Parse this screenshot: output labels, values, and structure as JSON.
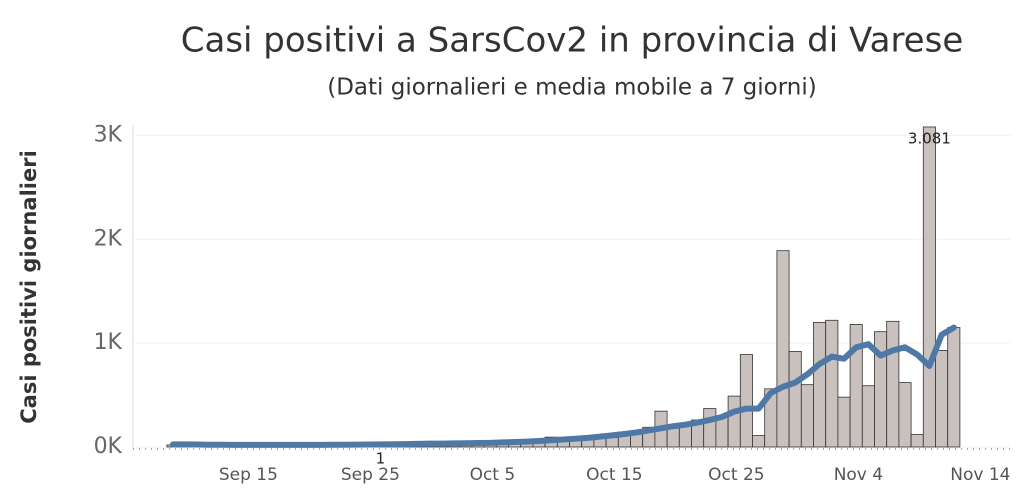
{
  "chart_data": {
    "type": "bar+line",
    "title": "Casi positivi  a SarsCov2 in provincia di Varese",
    "subtitle": "(Dati giornalieri e media mobile  a 7 giorni)",
    "y_label": "Casi positivi giornalieri",
    "categories": [
      "Sep 8",
      "Sep 9",
      "Sep 10",
      "Sep 11",
      "Sep 12",
      "Sep 13",
      "Sep 14",
      "Sep 15",
      "Sep 16",
      "Sep 17",
      "Sep 18",
      "Sep 19",
      "Sep 20",
      "Sep 21",
      "Sep 22",
      "Sep 23",
      "Sep 24",
      "Sep 25",
      "Sep 26",
      "Sep 27",
      "Sep 28",
      "Sep 29",
      "Sep 30",
      "Oct 1",
      "Oct 2",
      "Oct 3",
      "Oct 4",
      "Oct 5",
      "Oct 6",
      "Oct 7",
      "Oct 8",
      "Oct 9",
      "Oct 10",
      "Oct 11",
      "Oct 12",
      "Oct 13",
      "Oct 14",
      "Oct 15",
      "Oct 16",
      "Oct 17",
      "Oct 18",
      "Oct 19",
      "Oct 20",
      "Oct 21",
      "Oct 22",
      "Oct 23",
      "Oct 24",
      "Oct 25",
      "Oct 26",
      "Oct 27",
      "Oct 28",
      "Oct 29",
      "Oct 30",
      "Oct 31",
      "Nov 1",
      "Nov 2",
      "Nov 3",
      "Nov 4",
      "Nov 5",
      "Nov 6",
      "Nov 7",
      "Nov 8",
      "Nov 9",
      "Nov 10",
      "Nov 11",
      "Nov 12",
      "Nov 13",
      "Nov 14"
    ],
    "xticks": [
      "Sep 15",
      "Sep 25",
      "Oct 5",
      "Oct 15",
      "Oct 25",
      "Nov 4",
      "Nov 14"
    ],
    "series": [
      {
        "name": "Casi giornalieri",
        "kind": "bar",
        "color": "#c9c1be",
        "values": [
          20,
          30,
          25,
          15,
          40,
          10,
          35,
          30,
          25,
          20,
          15,
          30,
          10,
          35,
          25,
          20,
          30,
          1,
          25,
          35,
          30,
          20,
          40,
          35,
          30,
          25,
          45,
          50,
          40,
          35,
          60,
          95,
          60,
          70,
          100,
          100,
          90,
          145,
          130,
          190,
          345,
          210,
          220,
          260,
          370,
          290,
          490,
          890,
          110,
          560,
          1890,
          920,
          600,
          1200,
          1220,
          480,
          1180,
          590,
          1110,
          1210,
          620,
          120,
          3081,
          930,
          1150,
          null,
          null,
          null
        ],
        "value_labels": [
          null,
          null,
          null,
          null,
          null,
          null,
          null,
          null,
          null,
          null,
          null,
          null,
          null,
          null,
          null,
          null,
          null,
          "1",
          null,
          null,
          null,
          null,
          null,
          null,
          null,
          null,
          null,
          null,
          null,
          null,
          null,
          null,
          null,
          null,
          null,
          null,
          null,
          null,
          null,
          null,
          null,
          null,
          null,
          null,
          null,
          null,
          null,
          null,
          null,
          null,
          null,
          null,
          null,
          null,
          null,
          null,
          null,
          null,
          null,
          null,
          null,
          null,
          "3.081",
          null,
          null,
          null,
          null,
          null
        ]
      },
      {
        "name": "Media mobile 7 giorni",
        "kind": "line",
        "color": "#4e79a7",
        "values": [
          25,
          25,
          24,
          22,
          22,
          21,
          20,
          20,
          20,
          20,
          20,
          20,
          21,
          22,
          22,
          23,
          24,
          25,
          26,
          28,
          30,
          32,
          33,
          35,
          36,
          38,
          40,
          44,
          48,
          52,
          58,
          65,
          72,
          80,
          88,
          100,
          112,
          125,
          140,
          160,
          180,
          200,
          215,
          235,
          260,
          290,
          340,
          370,
          370,
          520,
          580,
          620,
          700,
          800,
          870,
          850,
          960,
          990,
          880,
          930,
          960,
          890,
          780,
          1080,
          1150,
          null,
          null,
          null
        ]
      }
    ],
    "ylim": [
      0,
      3100
    ],
    "yticks": [
      {
        "value": 0,
        "label": "0K"
      },
      {
        "value": 1000,
        "label": "1K"
      },
      {
        "value": 2000,
        "label": "2K"
      },
      {
        "value": 3000,
        "label": "3K"
      }
    ],
    "grid": true
  }
}
